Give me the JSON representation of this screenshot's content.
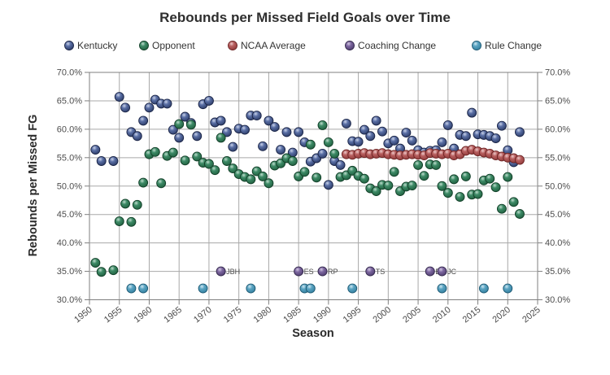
{
  "title": "Rebounds per Missed Field Goals over Time",
  "axes": {
    "x": {
      "label": "Season",
      "min": 1950,
      "max": 2025,
      "tick_step": 5,
      "ticks": [
        "1950",
        "1955",
        "1960",
        "1965",
        "1970",
        "1975",
        "1980",
        "1985",
        "1990",
        "1995",
        "2000",
        "2005",
        "2010",
        "2015",
        "2020",
        "2025"
      ]
    },
    "y": {
      "label": "Rebounds per Missed FG",
      "min": 30,
      "max": 70,
      "tick_step": 5,
      "ticks": [
        "30.0%",
        "35.0%",
        "40.0%",
        "45.0%",
        "50.0%",
        "55.0%",
        "60.0%",
        "65.0%",
        "70.0%"
      ],
      "shown_on_both_sides": true
    }
  },
  "legend": [
    {
      "key": "kentucky",
      "label": "Kentucky"
    },
    {
      "key": "opponent",
      "label": "Opponent"
    },
    {
      "key": "ncaa_average",
      "label": "NCAA Average"
    },
    {
      "key": "coaching_change",
      "label": "Coaching Change"
    },
    {
      "key": "rule_change",
      "label": "Rule Change"
    }
  ],
  "colors": {
    "kentucky": "#2c3b66",
    "opponent": "#1f5c3d",
    "ncaa_average": "#8c3737",
    "coaching_change": "#4b3a6a",
    "rule_change": "#2f7c9c",
    "gridline": "#a8a8a8",
    "frame": "#7f7f7f",
    "title": "#2e2e2e",
    "tick_text": "#4d4d4d"
  },
  "chart_data": {
    "type": "scatter",
    "xlabel": "Season",
    "ylabel": "Rebounds per Missed FG",
    "xlim": [
      1950,
      2025
    ],
    "ylim": [
      30,
      70
    ],
    "y_unit": "percent",
    "grid": true,
    "legend_position": "top",
    "series": [
      {
        "name": "Kentucky",
        "key": "kentucky",
        "points": [
          [
            1951,
            56.4
          ],
          [
            1952,
            54.4
          ],
          [
            1954,
            54.4
          ],
          [
            1955,
            65.7
          ],
          [
            1956,
            63.8
          ],
          [
            1957,
            59.5
          ],
          [
            1958,
            58.8
          ],
          [
            1959,
            61.5
          ],
          [
            1960,
            63.8
          ],
          [
            1961,
            65.2
          ],
          [
            1962,
            64.5
          ],
          [
            1963,
            64.5
          ],
          [
            1964,
            59.9
          ],
          [
            1965,
            58.5
          ],
          [
            1966,
            62.2
          ],
          [
            1967,
            61.1
          ],
          [
            1968,
            58.8
          ],
          [
            1969,
            64.4
          ],
          [
            1970,
            65.0
          ],
          [
            1971,
            61.2
          ],
          [
            1972,
            61.5
          ],
          [
            1973,
            59.5
          ],
          [
            1974,
            56.9
          ],
          [
            1975,
            60.1
          ],
          [
            1976,
            59.9
          ],
          [
            1977,
            62.4
          ],
          [
            1978,
            62.4
          ],
          [
            1979,
            57.0
          ],
          [
            1980,
            61.5
          ],
          [
            1981,
            60.4
          ],
          [
            1982,
            56.4
          ],
          [
            1983,
            59.5
          ],
          [
            1984,
            55.9
          ],
          [
            1985,
            59.5
          ],
          [
            1986,
            57.7
          ],
          [
            1987,
            54.3
          ],
          [
            1988,
            54.9
          ],
          [
            1989,
            55.7
          ],
          [
            1990,
            50.2
          ],
          [
            1991,
            54.4
          ],
          [
            1992,
            53.7
          ],
          [
            1993,
            61.0
          ],
          [
            1994,
            57.9
          ],
          [
            1995,
            57.8
          ],
          [
            1996,
            59.9
          ],
          [
            1997,
            58.8
          ],
          [
            1998,
            61.5
          ],
          [
            1999,
            59.6
          ],
          [
            2000,
            57.5
          ],
          [
            2001,
            58.0
          ],
          [
            2002,
            56.6
          ],
          [
            2003,
            59.4
          ],
          [
            2004,
            58.0
          ],
          [
            2005,
            56.3
          ],
          [
            2006,
            55.9
          ],
          [
            2007,
            56.2
          ],
          [
            2008,
            56.3
          ],
          [
            2009,
            57.7
          ],
          [
            2010,
            60.7
          ],
          [
            2011,
            56.6
          ],
          [
            2012,
            59.0
          ],
          [
            2013,
            58.8
          ],
          [
            2014,
            62.9
          ],
          [
            2015,
            59.1
          ],
          [
            2016,
            59.0
          ],
          [
            2017,
            58.8
          ],
          [
            2018,
            58.4
          ],
          [
            2019,
            60.6
          ],
          [
            2020,
            56.3
          ],
          [
            2021,
            54.2
          ],
          [
            2022,
            59.5
          ]
        ]
      },
      {
        "name": "Opponent",
        "key": "opponent",
        "points": [
          [
            1951,
            36.5
          ],
          [
            1952,
            34.9
          ],
          [
            1954,
            35.2
          ],
          [
            1955,
            43.8
          ],
          [
            1956,
            46.9
          ],
          [
            1957,
            43.7
          ],
          [
            1958,
            46.7
          ],
          [
            1959,
            50.6
          ],
          [
            1960,
            55.6
          ],
          [
            1961,
            56.0
          ],
          [
            1962,
            50.5
          ],
          [
            1963,
            55.3
          ],
          [
            1964,
            55.9
          ],
          [
            1965,
            60.9
          ],
          [
            1966,
            54.5
          ],
          [
            1967,
            60.8
          ],
          [
            1968,
            55.2
          ],
          [
            1969,
            54.1
          ],
          [
            1970,
            53.9
          ],
          [
            1971,
            52.8
          ],
          [
            1972,
            58.5
          ],
          [
            1973,
            54.4
          ],
          [
            1974,
            53.1
          ],
          [
            1975,
            52.1
          ],
          [
            1976,
            51.6
          ],
          [
            1977,
            51.2
          ],
          [
            1978,
            52.6
          ],
          [
            1979,
            51.7
          ],
          [
            1980,
            50.5
          ],
          [
            1981,
            53.6
          ],
          [
            1982,
            54.0
          ],
          [
            1983,
            54.9
          ],
          [
            1984,
            54.4
          ],
          [
            1985,
            51.7
          ],
          [
            1986,
            52.5
          ],
          [
            1987,
            57.3
          ],
          [
            1988,
            51.5
          ],
          [
            1989,
            60.7
          ],
          [
            1990,
            57.7
          ],
          [
            1991,
            55.7
          ],
          [
            1992,
            51.6
          ],
          [
            1993,
            51.9
          ],
          [
            1994,
            52.7
          ],
          [
            1995,
            51.8
          ],
          [
            1996,
            51.3
          ],
          [
            1997,
            49.6
          ],
          [
            1998,
            49.1
          ],
          [
            1999,
            50.2
          ],
          [
            2000,
            50.1
          ],
          [
            2001,
            52.5
          ],
          [
            2002,
            49.1
          ],
          [
            2003,
            49.9
          ],
          [
            2004,
            50.1
          ],
          [
            2005,
            53.7
          ],
          [
            2006,
            51.8
          ],
          [
            2007,
            53.8
          ],
          [
            2008,
            53.7
          ],
          [
            2009,
            50.0
          ],
          [
            2010,
            48.8
          ],
          [
            2011,
            51.2
          ],
          [
            2012,
            48.1
          ],
          [
            2013,
            51.7
          ],
          [
            2014,
            48.5
          ],
          [
            2015,
            48.6
          ],
          [
            2016,
            51.0
          ],
          [
            2017,
            51.3
          ],
          [
            2018,
            49.8
          ],
          [
            2019,
            46.0
          ],
          [
            2020,
            51.6
          ],
          [
            2021,
            47.2
          ],
          [
            2022,
            45.1
          ]
        ]
      },
      {
        "name": "NCAA Average",
        "key": "ncaa_average",
        "points": [
          [
            1993,
            55.6
          ],
          [
            1994,
            55.5
          ],
          [
            1995,
            55.7
          ],
          [
            1996,
            55.8
          ],
          [
            1997,
            55.6
          ],
          [
            1998,
            55.7
          ],
          [
            1999,
            55.8
          ],
          [
            2000,
            55.6
          ],
          [
            2001,
            55.5
          ],
          [
            2002,
            55.4
          ],
          [
            2003,
            55.5
          ],
          [
            2004,
            55.6
          ],
          [
            2005,
            55.5
          ],
          [
            2006,
            55.4
          ],
          [
            2007,
            55.8
          ],
          [
            2008,
            55.7
          ],
          [
            2009,
            55.6
          ],
          [
            2010,
            55.7
          ],
          [
            2011,
            55.4
          ],
          [
            2012,
            55.6
          ],
          [
            2013,
            56.2
          ],
          [
            2014,
            56.4
          ],
          [
            2015,
            56.1
          ],
          [
            2016,
            55.9
          ],
          [
            2017,
            55.7
          ],
          [
            2018,
            55.4
          ],
          [
            2019,
            55.2
          ],
          [
            2020,
            55.0
          ],
          [
            2021,
            54.9
          ],
          [
            2022,
            54.6
          ]
        ]
      },
      {
        "name": "Coaching Change",
        "key": "coaching_change",
        "points": [
          [
            1972,
            35.0,
            "JBH"
          ],
          [
            1985,
            35.0,
            "ES"
          ],
          [
            1989,
            35.0,
            "RP"
          ],
          [
            1997,
            35.0,
            "TS"
          ],
          [
            2007,
            35.0,
            "BG"
          ],
          [
            2009,
            35.0,
            "JC"
          ]
        ]
      },
      {
        "name": "Rule Change",
        "key": "rule_change",
        "points": [
          [
            1957,
            32.0
          ],
          [
            1959,
            32.0
          ],
          [
            1969,
            32.0
          ],
          [
            1977,
            32.0
          ],
          [
            1986,
            32.0
          ],
          [
            1987,
            32.0
          ],
          [
            1994,
            32.0
          ],
          [
            2009,
            32.0
          ],
          [
            2016,
            32.0
          ],
          [
            2020,
            32.0
          ]
        ]
      }
    ]
  }
}
